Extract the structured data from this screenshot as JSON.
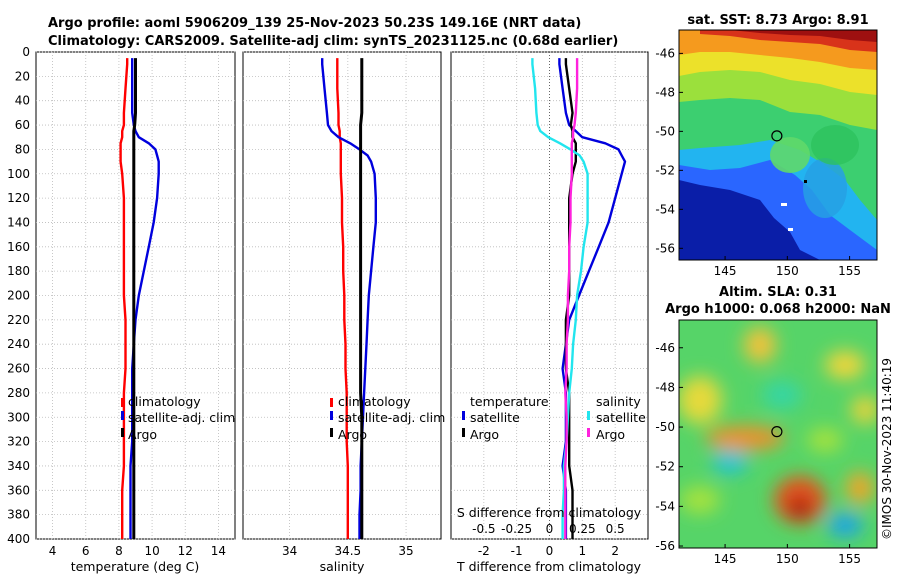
{
  "title": {
    "line1": "Argo profile: aoml 5906209_139 25-Nov-2023 50.23S 149.16E (NRT data)",
    "line2": "Climatology: CARS2009. Satellite-adj clim: synTS_20231125.nc (0.68d earlier)"
  },
  "colors": {
    "climatology": "#ff0000",
    "satellite": "#0000dd",
    "argo": "#000000",
    "sat_salinity": "#22e5ee",
    "argo_salinity": "#ff22dd"
  },
  "depth_ticks": [
    "0",
    "20",
    "40",
    "60",
    "80",
    "100",
    "120",
    "140",
    "160",
    "180",
    "200",
    "220",
    "240",
    "260",
    "280",
    "300",
    "320",
    "340",
    "360",
    "380",
    "400"
  ],
  "chart_data": [
    {
      "type": "line",
      "name": "temperature",
      "xlabel": "temperature (deg C)",
      "ylabel": "",
      "ylim": [
        0,
        400
      ],
      "xlim": [
        3,
        15
      ],
      "xticks": [
        "4",
        "6",
        "8",
        "10",
        "12",
        "14"
      ],
      "xtick_values": [
        4,
        6,
        8,
        10,
        12,
        14
      ],
      "depth": [
        5,
        10,
        30,
        50,
        60,
        65,
        70,
        75,
        80,
        85,
        90,
        100,
        120,
        140,
        160,
        180,
        200,
        220,
        240,
        260,
        280,
        300,
        320,
        340,
        360,
        380,
        400
      ],
      "series": [
        {
          "name": "climatology",
          "values": [
            8.5,
            8.5,
            8.4,
            8.3,
            8.3,
            8.2,
            8.2,
            8.1,
            8.1,
            8.1,
            8.1,
            8.2,
            8.3,
            8.3,
            8.3,
            8.3,
            8.3,
            8.4,
            8.4,
            8.4,
            8.3,
            8.3,
            8.3,
            8.3,
            8.2,
            8.2,
            8.2
          ]
        },
        {
          "name": "satellite-adj. clim",
          "values": [
            8.8,
            8.8,
            8.8,
            8.8,
            8.9,
            9.0,
            9.2,
            9.8,
            10.2,
            10.3,
            10.4,
            10.4,
            10.3,
            10.1,
            9.8,
            9.5,
            9.2,
            9.0,
            8.9,
            8.8,
            8.8,
            8.8,
            8.8,
            8.7,
            8.7,
            8.7,
            8.7
          ]
        },
        {
          "name": "Argo",
          "values": [
            9.0,
            9.0,
            9.0,
            9.0,
            8.95,
            8.9,
            8.9,
            8.9,
            8.9,
            8.9,
            8.9,
            8.9,
            8.9,
            8.9,
            8.9,
            8.9,
            8.9,
            8.9,
            8.9,
            8.9,
            8.9,
            8.9,
            8.9,
            8.9,
            8.9,
            8.9,
            8.9
          ]
        }
      ],
      "legend": [
        "climatology",
        "satellite-adj. clim",
        "Argo"
      ]
    },
    {
      "type": "line",
      "name": "salinity",
      "xlabel": "salinity",
      "ylabel": "",
      "ylim": [
        0,
        400
      ],
      "xlim": [
        33.6,
        35.3
      ],
      "xticks": [
        "34",
        "34.5",
        "35"
      ],
      "xtick_values": [
        34,
        34.5,
        35
      ],
      "depth": [
        5,
        10,
        30,
        50,
        60,
        65,
        70,
        75,
        80,
        85,
        90,
        100,
        120,
        140,
        160,
        180,
        200,
        220,
        240,
        260,
        280,
        300,
        320,
        340,
        360,
        380,
        400
      ],
      "series": [
        {
          "name": "climatology",
          "values": [
            34.41,
            34.41,
            34.41,
            34.42,
            34.42,
            34.43,
            34.43,
            34.44,
            34.44,
            34.44,
            34.44,
            34.44,
            34.45,
            34.45,
            34.46,
            34.46,
            34.47,
            34.47,
            34.48,
            34.48,
            34.49,
            34.49,
            34.49,
            34.5,
            34.5,
            34.5,
            34.5
          ]
        },
        {
          "name": "satellite-adj. clim",
          "values": [
            34.28,
            34.28,
            34.3,
            34.32,
            34.33,
            34.36,
            34.42,
            34.52,
            34.6,
            34.67,
            34.7,
            34.73,
            34.74,
            34.74,
            34.72,
            34.7,
            34.68,
            34.67,
            34.66,
            34.65,
            34.64,
            34.63,
            34.62,
            34.61,
            34.61,
            34.6,
            34.6
          ]
        },
        {
          "name": "Argo",
          "values": [
            34.62,
            34.62,
            34.62,
            34.62,
            34.61,
            34.61,
            34.61,
            34.61,
            34.61,
            34.61,
            34.61,
            34.61,
            34.61,
            34.61,
            34.61,
            34.61,
            34.61,
            34.61,
            34.61,
            34.61,
            34.61,
            34.62,
            34.62,
            34.62,
            34.62,
            34.62,
            34.62
          ]
        }
      ],
      "legend": [
        "climatology",
        "satellite-adj. clim",
        "Argo"
      ]
    },
    {
      "type": "line",
      "name": "differences",
      "xlabel": "T difference from climatology",
      "xlabel_top": "S difference from climatology",
      "ylim": [
        0,
        400
      ],
      "xlim": [
        -3,
        3
      ],
      "xticks": [
        "-2",
        "-1",
        "0",
        "1",
        "2"
      ],
      "xtick_values": [
        -2,
        -1,
        0,
        1,
        2
      ],
      "xticks_top": [
        "-0.5",
        "-0.25",
        "0",
        "0.25",
        "0.5"
      ],
      "depth": [
        5,
        10,
        30,
        50,
        60,
        65,
        70,
        75,
        80,
        85,
        90,
        100,
        120,
        140,
        160,
        180,
        200,
        220,
        240,
        260,
        280,
        300,
        320,
        340,
        360,
        380,
        400
      ],
      "series": [
        {
          "name": "temperature satellite",
          "values": [
            0.3,
            0.3,
            0.4,
            0.5,
            0.6,
            0.8,
            1.0,
            1.7,
            2.1,
            2.2,
            2.3,
            2.2,
            2.0,
            1.8,
            1.5,
            1.2,
            0.9,
            0.6,
            0.5,
            0.4,
            0.5,
            0.5,
            0.5,
            0.4,
            0.5,
            0.5,
            0.5
          ]
        },
        {
          "name": "temperature Argo",
          "values": [
            0.5,
            0.5,
            0.6,
            0.7,
            0.65,
            0.7,
            0.7,
            0.8,
            0.8,
            0.8,
            0.8,
            0.7,
            0.6,
            0.6,
            0.6,
            0.6,
            0.6,
            0.5,
            0.5,
            0.5,
            0.6,
            0.6,
            0.6,
            0.6,
            0.7,
            0.7,
            0.7
          ]
        },
        {
          "name": "salinity satellite",
          "values": [
            -0.13,
            -0.13,
            -0.11,
            -0.1,
            -0.09,
            -0.07,
            -0.01,
            0.08,
            0.16,
            0.23,
            0.26,
            0.29,
            0.29,
            0.29,
            0.26,
            0.24,
            0.21,
            0.2,
            0.18,
            0.17,
            0.15,
            0.14,
            0.13,
            0.11,
            0.11,
            0.1,
            0.1
          ]
        },
        {
          "name": "salinity Argo",
          "values": [
            0.21,
            0.21,
            0.21,
            0.2,
            0.19,
            0.18,
            0.18,
            0.17,
            0.17,
            0.17,
            0.17,
            0.17,
            0.16,
            0.16,
            0.15,
            0.15,
            0.14,
            0.14,
            0.13,
            0.13,
            0.12,
            0.13,
            0.13,
            0.12,
            0.12,
            0.12,
            0.12
          ]
        }
      ],
      "legend_temperature": [
        "temperature",
        "satellite",
        "Argo"
      ],
      "legend_salinity": [
        "salinity",
        "satellite",
        "Argo"
      ]
    }
  ],
  "sst_map": {
    "title": "sat. SST: 8.73 Argo: 8.91",
    "yticks": [
      "-46",
      "-48",
      "-50",
      "-52",
      "-54",
      "-56"
    ],
    "xticks": [
      "145",
      "150",
      "155"
    ],
    "argo_lon": 149.16,
    "argo_lat": -50.23
  },
  "sla_map": {
    "title1": "Altim. SLA: 0.31",
    "title2": "Argo h1000: 0.068 h2000: NaN",
    "yticks": [
      "-46",
      "-48",
      "-50",
      "-52",
      "-54",
      "-56"
    ],
    "xticks": [
      "145",
      "150",
      "155"
    ],
    "argo_lon": 149.16,
    "argo_lat": -50.23
  },
  "credit": "©IMOS 30-Nov-2023 11:40:19"
}
